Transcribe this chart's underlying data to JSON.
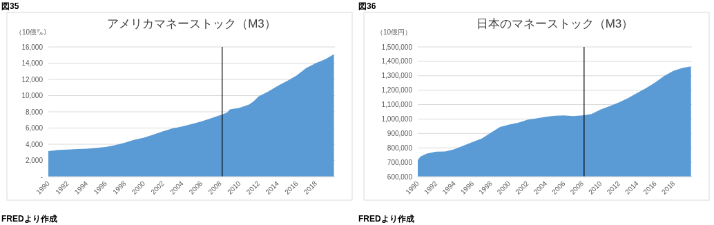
{
  "chart_data": [
    {
      "type": "area",
      "title": "アメリカマネーストック（M3）",
      "ylabel": "（10億㌦）",
      "annotations": [
        "図35",
        "FREDより作成"
      ],
      "grid": "y",
      "x": [
        1990,
        1991,
        1992,
        1993,
        1994,
        1995,
        1996,
        1997,
        1998,
        1999,
        2000,
        2001,
        2002,
        2003,
        2004,
        2005,
        2006,
        2007,
        2008,
        2008.7,
        2009,
        2010,
        2011,
        2011.5,
        2012,
        2013,
        2014,
        2015,
        2016,
        2017,
        2018,
        2019,
        2019.9
      ],
      "series": [
        {
          "color": "#5b9bd5",
          "values": [
            3150,
            3300,
            3350,
            3400,
            3450,
            3550,
            3650,
            3900,
            4200,
            4550,
            4800,
            5200,
            5600,
            5950,
            6200,
            6500,
            6800,
            7200,
            7600,
            7900,
            8300,
            8500,
            8900,
            9300,
            9900,
            10500,
            11200,
            11800,
            12500,
            13400,
            14000,
            14500,
            15100
          ]
        }
      ],
      "xlim": [
        1990,
        2020
      ],
      "xticks": [
        1990,
        1992,
        1994,
        1996,
        1998,
        2000,
        2002,
        2004,
        2006,
        2008,
        2010,
        2012,
        2014,
        2016,
        2018
      ],
      "ylim": [
        0,
        16000
      ],
      "yticks": [
        {
          "value": 0,
          "label": "-"
        },
        {
          "value": 2000,
          "label": "2,000"
        },
        {
          "value": 4000,
          "label": "4,000"
        },
        {
          "value": 6000,
          "label": "6,000"
        },
        {
          "value": 8000,
          "label": "8,000"
        },
        {
          "value": 10000,
          "label": "10,000"
        },
        {
          "value": 12000,
          "label": "12,000"
        },
        {
          "value": 14000,
          "label": "14,000"
        },
        {
          "value": 16000,
          "label": "16,000"
        }
      ],
      "ref_lines": [
        {
          "axis": "x",
          "value": 2008.2,
          "color": "#000000"
        }
      ]
    },
    {
      "type": "area",
      "title": "日本のマネーストック（M3）",
      "ylabel": "（10億円）",
      "annotations": [
        "図36",
        "FREDより作成"
      ],
      "grid": "y",
      "x": [
        1990,
        1990.3,
        1991,
        1992,
        1993,
        1994,
        1995,
        1996,
        1997,
        1998,
        1999,
        2000,
        2001,
        2002,
        2003,
        2004,
        2005,
        2006,
        2007,
        2008,
        2009,
        2010,
        2011,
        2012,
        2013,
        2014,
        2015,
        2016,
        2017,
        2018,
        2019,
        2019.9
      ],
      "series": [
        {
          "color": "#5b9bd5",
          "values": [
            715000,
            740000,
            760000,
            773000,
            775000,
            790000,
            815000,
            840000,
            865000,
            905000,
            945000,
            962000,
            975000,
            995000,
            1005000,
            1015000,
            1022000,
            1025000,
            1020000,
            1025000,
            1035000,
            1065000,
            1090000,
            1115000,
            1145000,
            1180000,
            1215000,
            1255000,
            1300000,
            1335000,
            1355000,
            1365000
          ]
        }
      ],
      "xlim": [
        1990,
        2020
      ],
      "xticks": [
        1990,
        1992,
        1994,
        1996,
        1998,
        2000,
        2002,
        2004,
        2006,
        2008,
        2010,
        2012,
        2014,
        2016,
        2018
      ],
      "ylim": [
        600000,
        1500000
      ],
      "yticks": [
        {
          "value": 600000,
          "label": "600,000"
        },
        {
          "value": 700000,
          "label": "700,000"
        },
        {
          "value": 800000,
          "label": "800,000"
        },
        {
          "value": 900000,
          "label": "900,000"
        },
        {
          "value": 1000000,
          "label": "1,000,000"
        },
        {
          "value": 1100000,
          "label": "1,100,000"
        },
        {
          "value": 1200000,
          "label": "1,200,000"
        },
        {
          "value": 1300000,
          "label": "1,300,000"
        },
        {
          "value": 1400000,
          "label": "1,400,000"
        },
        {
          "value": 1500000,
          "label": "1,500,000"
        }
      ],
      "ref_lines": [
        {
          "axis": "x",
          "value": 2008.2,
          "color": "#000000"
        }
      ]
    }
  ]
}
